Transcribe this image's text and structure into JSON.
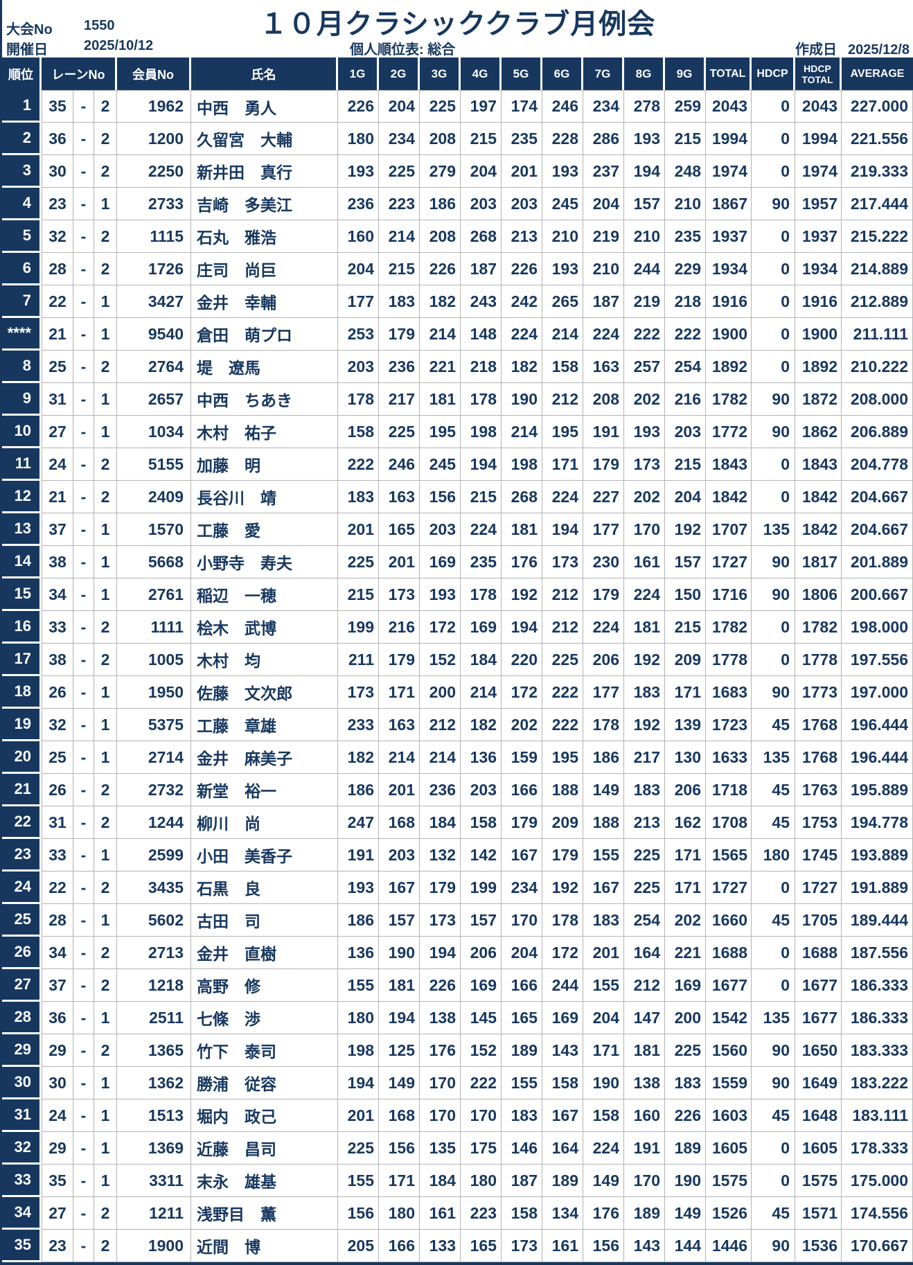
{
  "meta": {
    "tournament_no_label": "大会No",
    "tournament_no": "1550",
    "date_label": "開催日",
    "date": "2025/10/12",
    "title": "１０月クラシッククラブ月例会",
    "subtitle": "個人順位表: 総合",
    "created_label": "作成日",
    "created_date": "2025/12/8"
  },
  "table": {
    "columns": {
      "rank": "順位",
      "lane": "レーンNo",
      "member": "会員No",
      "name": "氏名",
      "total": "TOTAL",
      "hdcp": "HDCP",
      "hdcp_total_line1": "HDCP",
      "hdcp_total_line2": "TOTAL",
      "average": "AVERAGE"
    },
    "game_labels": [
      "1G",
      "2G",
      "3G",
      "4G",
      "5G",
      "6G",
      "7G",
      "8G",
      "9G"
    ],
    "lane_separator": "-"
  },
  "rows": [
    {
      "rank": "1",
      "lane": "35",
      "lane_sub": "2",
      "member_no": "1962",
      "name": "中西　勇人",
      "games": [
        226,
        204,
        225,
        197,
        174,
        246,
        234,
        278,
        259
      ],
      "total": 2043,
      "hdcp": 0,
      "hdcp_total": 2043,
      "average": "227.000"
    },
    {
      "rank": "2",
      "lane": "36",
      "lane_sub": "2",
      "member_no": "1200",
      "name": "久留宮　大輔",
      "games": [
        180,
        234,
        208,
        215,
        235,
        228,
        286,
        193,
        215
      ],
      "total": 1994,
      "hdcp": 0,
      "hdcp_total": 1994,
      "average": "221.556"
    },
    {
      "rank": "3",
      "lane": "30",
      "lane_sub": "2",
      "member_no": "2250",
      "name": "新井田　真行",
      "games": [
        193,
        225,
        279,
        204,
        201,
        193,
        237,
        194,
        248
      ],
      "total": 1974,
      "hdcp": 0,
      "hdcp_total": 1974,
      "average": "219.333"
    },
    {
      "rank": "4",
      "lane": "23",
      "lane_sub": "1",
      "member_no": "2733",
      "name": "吉崎　多美江",
      "games": [
        236,
        223,
        186,
        203,
        203,
        245,
        204,
        157,
        210
      ],
      "total": 1867,
      "hdcp": 90,
      "hdcp_total": 1957,
      "average": "217.444"
    },
    {
      "rank": "5",
      "lane": "32",
      "lane_sub": "2",
      "member_no": "1115",
      "name": "石丸　雅浩",
      "games": [
        160,
        214,
        208,
        268,
        213,
        210,
        219,
        210,
        235
      ],
      "total": 1937,
      "hdcp": 0,
      "hdcp_total": 1937,
      "average": "215.222"
    },
    {
      "rank": "6",
      "lane": "28",
      "lane_sub": "2",
      "member_no": "1726",
      "name": "庄司　尚巨",
      "games": [
        204,
        215,
        226,
        187,
        226,
        193,
        210,
        244,
        229
      ],
      "total": 1934,
      "hdcp": 0,
      "hdcp_total": 1934,
      "average": "214.889"
    },
    {
      "rank": "7",
      "lane": "22",
      "lane_sub": "1",
      "member_no": "3427",
      "name": "金井　幸輔",
      "games": [
        177,
        183,
        182,
        243,
        242,
        265,
        187,
        219,
        218
      ],
      "total": 1916,
      "hdcp": 0,
      "hdcp_total": 1916,
      "average": "212.889"
    },
    {
      "rank": "****",
      "lane": "21",
      "lane_sub": "1",
      "member_no": "9540",
      "name": "倉田　萌プロ",
      "games": [
        253,
        179,
        214,
        148,
        224,
        214,
        224,
        222,
        222
      ],
      "total": 1900,
      "hdcp": 0,
      "hdcp_total": 1900,
      "average": "211.111"
    },
    {
      "rank": "8",
      "lane": "25",
      "lane_sub": "2",
      "member_no": "2764",
      "name": "堤　遼馬",
      "games": [
        203,
        236,
        221,
        218,
        182,
        158,
        163,
        257,
        254
      ],
      "total": 1892,
      "hdcp": 0,
      "hdcp_total": 1892,
      "average": "210.222"
    },
    {
      "rank": "9",
      "lane": "31",
      "lane_sub": "1",
      "member_no": "2657",
      "name": "中西　ちあき",
      "games": [
        178,
        217,
        181,
        178,
        190,
        212,
        208,
        202,
        216
      ],
      "total": 1782,
      "hdcp": 90,
      "hdcp_total": 1872,
      "average": "208.000"
    },
    {
      "rank": "10",
      "lane": "27",
      "lane_sub": "1",
      "member_no": "1034",
      "name": "木村　祐子",
      "games": [
        158,
        225,
        195,
        198,
        214,
        195,
        191,
        193,
        203
      ],
      "total": 1772,
      "hdcp": 90,
      "hdcp_total": 1862,
      "average": "206.889"
    },
    {
      "rank": "11",
      "lane": "24",
      "lane_sub": "2",
      "member_no": "5155",
      "name": "加藤　明",
      "games": [
        222,
        246,
        245,
        194,
        198,
        171,
        179,
        173,
        215
      ],
      "total": 1843,
      "hdcp": 0,
      "hdcp_total": 1843,
      "average": "204.778"
    },
    {
      "rank": "12",
      "lane": "21",
      "lane_sub": "2",
      "member_no": "2409",
      "name": "長谷川　靖",
      "games": [
        183,
        163,
        156,
        215,
        268,
        224,
        227,
        202,
        204
      ],
      "total": 1842,
      "hdcp": 0,
      "hdcp_total": 1842,
      "average": "204.667"
    },
    {
      "rank": "13",
      "lane": "37",
      "lane_sub": "1",
      "member_no": "1570",
      "name": "工藤　愛",
      "games": [
        201,
        165,
        203,
        224,
        181,
        194,
        177,
        170,
        192
      ],
      "total": 1707,
      "hdcp": 135,
      "hdcp_total": 1842,
      "average": "204.667"
    },
    {
      "rank": "14",
      "lane": "38",
      "lane_sub": "1",
      "member_no": "5668",
      "name": "小野寺　寿夫",
      "games": [
        225,
        201,
        169,
        235,
        176,
        173,
        230,
        161,
        157
      ],
      "total": 1727,
      "hdcp": 90,
      "hdcp_total": 1817,
      "average": "201.889"
    },
    {
      "rank": "15",
      "lane": "34",
      "lane_sub": "1",
      "member_no": "2761",
      "name": "稲辺　一穂",
      "games": [
        215,
        173,
        193,
        178,
        192,
        212,
        179,
        224,
        150
      ],
      "total": 1716,
      "hdcp": 90,
      "hdcp_total": 1806,
      "average": "200.667"
    },
    {
      "rank": "16",
      "lane": "33",
      "lane_sub": "2",
      "member_no": "1111",
      "name": "桧木　武博",
      "games": [
        199,
        216,
        172,
        169,
        194,
        212,
        224,
        181,
        215
      ],
      "total": 1782,
      "hdcp": 0,
      "hdcp_total": 1782,
      "average": "198.000"
    },
    {
      "rank": "17",
      "lane": "38",
      "lane_sub": "2",
      "member_no": "1005",
      "name": "木村　均",
      "games": [
        211,
        179,
        152,
        184,
        220,
        225,
        206,
        192,
        209
      ],
      "total": 1778,
      "hdcp": 0,
      "hdcp_total": 1778,
      "average": "197.556"
    },
    {
      "rank": "18",
      "lane": "26",
      "lane_sub": "1",
      "member_no": "1950",
      "name": "佐藤　文次郎",
      "games": [
        173,
        171,
        200,
        214,
        172,
        222,
        177,
        183,
        171
      ],
      "total": 1683,
      "hdcp": 90,
      "hdcp_total": 1773,
      "average": "197.000"
    },
    {
      "rank": "19",
      "lane": "32",
      "lane_sub": "1",
      "member_no": "5375",
      "name": "工藤　章雄",
      "games": [
        233,
        163,
        212,
        182,
        202,
        222,
        178,
        192,
        139
      ],
      "total": 1723,
      "hdcp": 45,
      "hdcp_total": 1768,
      "average": "196.444"
    },
    {
      "rank": "20",
      "lane": "25",
      "lane_sub": "1",
      "member_no": "2714",
      "name": "金井　麻美子",
      "games": [
        182,
        214,
        214,
        136,
        159,
        195,
        186,
        217,
        130
      ],
      "total": 1633,
      "hdcp": 135,
      "hdcp_total": 1768,
      "average": "196.444"
    },
    {
      "rank": "21",
      "lane": "26",
      "lane_sub": "2",
      "member_no": "2732",
      "name": "新堂　裕一",
      "games": [
        186,
        201,
        236,
        203,
        166,
        188,
        149,
        183,
        206
      ],
      "total": 1718,
      "hdcp": 45,
      "hdcp_total": 1763,
      "average": "195.889"
    },
    {
      "rank": "22",
      "lane": "31",
      "lane_sub": "2",
      "member_no": "1244",
      "name": "柳川　尚",
      "games": [
        247,
        168,
        184,
        158,
        179,
        209,
        188,
        213,
        162
      ],
      "total": 1708,
      "hdcp": 45,
      "hdcp_total": 1753,
      "average": "194.778"
    },
    {
      "rank": "23",
      "lane": "33",
      "lane_sub": "1",
      "member_no": "2599",
      "name": "小田　美香子",
      "games": [
        191,
        203,
        132,
        142,
        167,
        179,
        155,
        225,
        171
      ],
      "total": 1565,
      "hdcp": 180,
      "hdcp_total": 1745,
      "average": "193.889"
    },
    {
      "rank": "24",
      "lane": "22",
      "lane_sub": "2",
      "member_no": "3435",
      "name": "石黒　良",
      "games": [
        193,
        167,
        179,
        199,
        234,
        192,
        167,
        225,
        171
      ],
      "total": 1727,
      "hdcp": 0,
      "hdcp_total": 1727,
      "average": "191.889"
    },
    {
      "rank": "25",
      "lane": "28",
      "lane_sub": "1",
      "member_no": "5602",
      "name": "古田　司",
      "games": [
        186,
        157,
        173,
        157,
        170,
        178,
        183,
        254,
        202
      ],
      "total": 1660,
      "hdcp": 45,
      "hdcp_total": 1705,
      "average": "189.444"
    },
    {
      "rank": "26",
      "lane": "34",
      "lane_sub": "2",
      "member_no": "2713",
      "name": "金井　直樹",
      "games": [
        136,
        190,
        194,
        206,
        204,
        172,
        201,
        164,
        221
      ],
      "total": 1688,
      "hdcp": 0,
      "hdcp_total": 1688,
      "average": "187.556"
    },
    {
      "rank": "27",
      "lane": "37",
      "lane_sub": "2",
      "member_no": "1218",
      "name": "高野　修",
      "games": [
        155,
        181,
        226,
        169,
        166,
        244,
        155,
        212,
        169
      ],
      "total": 1677,
      "hdcp": 0,
      "hdcp_total": 1677,
      "average": "186.333"
    },
    {
      "rank": "28",
      "lane": "36",
      "lane_sub": "1",
      "member_no": "2511",
      "name": "七條　渉",
      "games": [
        180,
        194,
        138,
        145,
        165,
        169,
        204,
        147,
        200
      ],
      "total": 1542,
      "hdcp": 135,
      "hdcp_total": 1677,
      "average": "186.333"
    },
    {
      "rank": "29",
      "lane": "29",
      "lane_sub": "2",
      "member_no": "1365",
      "name": "竹下　泰司",
      "games": [
        198,
        125,
        176,
        152,
        189,
        143,
        171,
        181,
        225
      ],
      "total": 1560,
      "hdcp": 90,
      "hdcp_total": 1650,
      "average": "183.333"
    },
    {
      "rank": "30",
      "lane": "30",
      "lane_sub": "1",
      "member_no": "1362",
      "name": "勝浦　従容",
      "games": [
        194,
        149,
        170,
        222,
        155,
        158,
        190,
        138,
        183
      ],
      "total": 1559,
      "hdcp": 90,
      "hdcp_total": 1649,
      "average": "183.222"
    },
    {
      "rank": "31",
      "lane": "24",
      "lane_sub": "1",
      "member_no": "1513",
      "name": "堀内　政己",
      "games": [
        201,
        168,
        170,
        170,
        183,
        167,
        158,
        160,
        226
      ],
      "total": 1603,
      "hdcp": 45,
      "hdcp_total": 1648,
      "average": "183.111"
    },
    {
      "rank": "32",
      "lane": "29",
      "lane_sub": "1",
      "member_no": "1369",
      "name": "近藤　昌司",
      "games": [
        225,
        156,
        135,
        175,
        146,
        164,
        224,
        191,
        189
      ],
      "total": 1605,
      "hdcp": 0,
      "hdcp_total": 1605,
      "average": "178.333"
    },
    {
      "rank": "33",
      "lane": "35",
      "lane_sub": "1",
      "member_no": "3311",
      "name": "末永　雄基",
      "games": [
        155,
        171,
        184,
        180,
        187,
        189,
        149,
        170,
        190
      ],
      "total": 1575,
      "hdcp": 0,
      "hdcp_total": 1575,
      "average": "175.000"
    },
    {
      "rank": "34",
      "lane": "27",
      "lane_sub": "2",
      "member_no": "1211",
      "name": "浅野目　薫",
      "games": [
        156,
        180,
        161,
        223,
        158,
        134,
        176,
        189,
        149
      ],
      "total": 1526,
      "hdcp": 45,
      "hdcp_total": 1571,
      "average": "174.556"
    },
    {
      "rank": "35",
      "lane": "23",
      "lane_sub": "2",
      "member_no": "1900",
      "name": "近間　博",
      "games": [
        205,
        166,
        133,
        165,
        173,
        161,
        156,
        143,
        144
      ],
      "total": 1446,
      "hdcp": 90,
      "hdcp_total": 1536,
      "average": "170.667"
    }
  ]
}
